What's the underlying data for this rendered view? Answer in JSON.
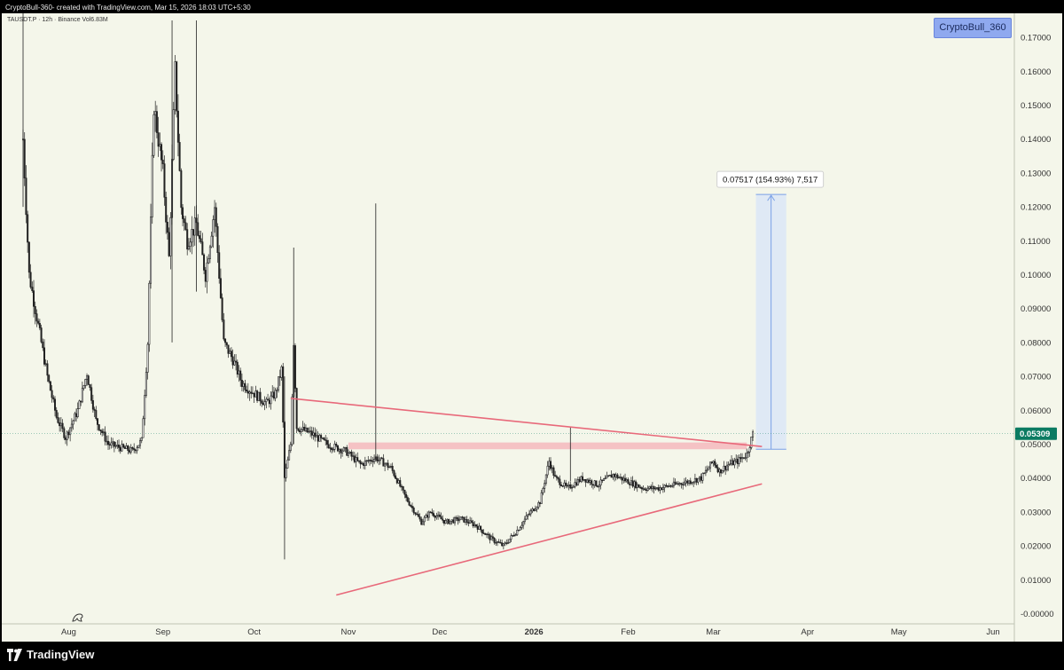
{
  "header": {
    "caption": "CryptoBull-360- created with TradingView.com, Mar 15, 2026 18:03 UTC+5:30",
    "symbol_line": "TAUSDT.P · 12h · Binance  Vol6.83M"
  },
  "badge": {
    "label": "CryptoBull_360",
    "bg_color": "#8fa9ef"
  },
  "footer": {
    "brand": "TradingView",
    "logo_icon": "tradingview-logo-icon"
  },
  "colors": {
    "background": "#f4f6ea",
    "candle": "#222222",
    "trendline": "#e8697a",
    "resistance_zone": "#f4b8bd",
    "measure_fill": "#dbe6f7",
    "measure_line": "#7aa0e6",
    "current_price": "#0b7b62"
  },
  "chart_data": {
    "type": "candlestick",
    "symbol": "TAUSDT.P",
    "interval": "12h",
    "exchange": "Binance",
    "volume": "6.83M",
    "y_axis": {
      "labels": [
        "0.17000",
        "0.16000",
        "0.15000",
        "0.14000",
        "0.13000",
        "0.12000",
        "0.11000",
        "0.10000",
        "0.09000",
        "0.08000",
        "0.07000",
        "0.06000",
        "0.05000",
        "0.04000",
        "0.03000",
        "0.02000",
        "0.01000",
        "-0.00000"
      ],
      "range": [
        -0.003,
        0.175
      ],
      "tick_values": [
        0.17,
        0.16,
        0.15,
        0.14,
        0.13,
        0.12,
        0.11,
        0.1,
        0.09,
        0.08,
        0.07,
        0.06,
        0.05,
        0.04,
        0.03,
        0.02,
        0.01,
        0.0
      ]
    },
    "x_axis": {
      "labels": [
        "Aug",
        "Sep",
        "Oct",
        "Nov",
        "Dec",
        "2026",
        "Feb",
        "Mar",
        "Apr",
        "May",
        "Jun"
      ],
      "dates": [
        "2025-08-01",
        "2025-09-01",
        "2025-10-01",
        "2025-11-01",
        "2025-12-01",
        "2026-01-01",
        "2026-02-01",
        "2026-03-01",
        "2026-04-01",
        "2026-05-01",
        "2026-06-01"
      ],
      "range": [
        "2025-07-10",
        "2026-06-08"
      ]
    },
    "current_price": {
      "value": 0.05309,
      "label": "0.05309"
    },
    "price_path": [
      [
        "2025-07-17",
        0.14
      ],
      [
        "2025-07-19",
        0.1
      ],
      [
        "2025-07-22",
        0.085
      ],
      [
        "2025-07-25",
        0.07
      ],
      [
        "2025-07-28",
        0.058
      ],
      [
        "2025-07-31",
        0.052
      ],
      [
        "2025-08-04",
        0.06
      ],
      [
        "2025-08-07",
        0.071
      ],
      [
        "2025-08-10",
        0.057
      ],
      [
        "2025-08-14",
        0.05
      ],
      [
        "2025-08-18",
        0.049
      ],
      [
        "2025-08-22",
        0.048
      ],
      [
        "2025-08-25",
        0.051
      ],
      [
        "2025-08-27",
        0.08
      ],
      [
        "2025-08-29",
        0.15
      ],
      [
        "2025-09-01",
        0.13
      ],
      [
        "2025-09-03",
        0.105
      ],
      [
        "2025-09-05",
        0.16
      ],
      [
        "2025-09-07",
        0.12
      ],
      [
        "2025-09-09",
        0.11
      ],
      [
        "2025-09-12",
        0.115
      ],
      [
        "2025-09-15",
        0.1
      ],
      [
        "2025-09-18",
        0.12
      ],
      [
        "2025-09-21",
        0.08
      ],
      [
        "2025-09-24",
        0.075
      ],
      [
        "2025-09-27",
        0.068
      ],
      [
        "2025-10-01",
        0.065
      ],
      [
        "2025-10-05",
        0.062
      ],
      [
        "2025-10-08",
        0.065
      ],
      [
        "2025-10-10",
        0.072
      ],
      [
        "2025-10-11",
        0.04
      ],
      [
        "2025-10-13",
        0.05
      ],
      [
        "2025-10-14",
        0.08
      ],
      [
        "2025-10-15",
        0.055
      ],
      [
        "2025-10-20",
        0.053
      ],
      [
        "2025-10-25",
        0.05
      ],
      [
        "2025-10-31",
        0.048
      ],
      [
        "2025-11-05",
        0.044
      ],
      [
        "2025-11-10",
        0.046
      ],
      [
        "2025-11-15",
        0.043
      ],
      [
        "2025-11-20",
        0.034
      ],
      [
        "2025-11-25",
        0.027
      ],
      [
        "2025-11-28",
        0.03
      ],
      [
        "2025-12-03",
        0.027
      ],
      [
        "2025-12-08",
        0.028
      ],
      [
        "2025-12-13",
        0.026
      ],
      [
        "2025-12-18",
        0.022
      ],
      [
        "2025-12-22",
        0.02
      ],
      [
        "2025-12-26",
        0.024
      ],
      [
        "2025-12-30",
        0.029
      ],
      [
        "2026-01-03",
        0.033
      ],
      [
        "2026-01-06",
        0.045
      ],
      [
        "2026-01-08",
        0.04
      ],
      [
        "2026-01-12",
        0.037
      ],
      [
        "2026-01-17",
        0.04
      ],
      [
        "2026-01-22",
        0.038
      ],
      [
        "2026-01-27",
        0.041
      ],
      [
        "2026-02-01",
        0.039
      ],
      [
        "2026-02-06",
        0.037
      ],
      [
        "2026-02-11",
        0.037
      ],
      [
        "2026-02-16",
        0.038
      ],
      [
        "2026-02-21",
        0.039
      ],
      [
        "2026-02-25",
        0.04
      ],
      [
        "2026-03-01",
        0.045
      ],
      [
        "2026-03-03",
        0.042
      ],
      [
        "2026-03-06",
        0.044
      ],
      [
        "2026-03-09",
        0.045
      ],
      [
        "2026-03-12",
        0.047
      ],
      [
        "2026-03-14",
        0.053
      ]
    ],
    "spikes": [
      {
        "date": "2025-07-17",
        "high": 0.18,
        "low": 0.12
      },
      {
        "date": "2025-09-04",
        "high": 0.175,
        "low": 0.08
      },
      {
        "date": "2025-09-12",
        "high": 0.175,
        "low": 0.095
      },
      {
        "date": "2025-10-11",
        "high": 0.07,
        "low": 0.016
      },
      {
        "date": "2025-10-14",
        "high": 0.108,
        "low": 0.05
      },
      {
        "date": "2025-11-10",
        "high": 0.121,
        "low": 0.045
      },
      {
        "date": "2026-01-13",
        "high": 0.055,
        "low": 0.039
      }
    ],
    "annotations": {
      "descending_trendline": {
        "from": [
          "2025-10-13",
          0.0635
        ],
        "to": [
          "2026-03-17",
          0.0493
        ]
      },
      "ascending_trendline": {
        "from": [
          "2025-10-28",
          0.0055
        ],
        "to": [
          "2026-03-17",
          0.0383
        ]
      },
      "resistance_zone": {
        "from": "2025-11-01",
        "to": "2026-03-12",
        "top": 0.0505,
        "bottom": 0.0485
      },
      "measure_box": {
        "from": "2026-03-15",
        "to": "2026-03-25",
        "top": 0.12366,
        "bottom": 0.04849,
        "label": "0.07517 (154.93%) 7,517"
      }
    }
  }
}
